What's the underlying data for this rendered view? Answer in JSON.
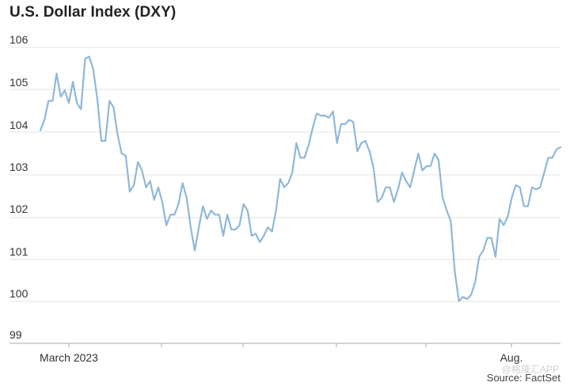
{
  "title": "U.S. Dollar Index (DXY)",
  "source": "Source: FactSet",
  "watermark": "@格隆汇APP",
  "colors": {
    "line": "#8fb8d8",
    "grid": "#e3e3e3",
    "axis": "#aaaaaa",
    "text": "#222222"
  },
  "chart_data": {
    "type": "line",
    "title": "U.S. Dollar Index (DXY)",
    "xlabel": "",
    "ylabel": "",
    "grid": true,
    "legend": "none",
    "y_tick_labels": [
      "106",
      "105",
      "104",
      "103",
      "102",
      "101",
      "100",
      "99"
    ],
    "x_tick_labels": [
      "March 2023",
      "Aug."
    ],
    "ylim": [
      99,
      106.1
    ],
    "series": [
      {
        "name": "",
        "values": [
          103.85,
          104.1,
          104.55,
          104.55,
          105.2,
          104.65,
          104.8,
          104.5,
          105.0,
          104.5,
          104.35,
          105.55,
          105.6,
          105.3,
          104.6,
          103.6,
          103.6,
          104.55,
          104.4,
          103.75,
          103.3,
          103.25,
          102.4,
          102.55,
          103.1,
          102.9,
          102.5,
          102.65,
          102.2,
          102.5,
          102.15,
          101.6,
          101.85,
          101.85,
          102.1,
          102.6,
          102.25,
          101.55,
          101.0,
          101.55,
          102.05,
          101.75,
          101.95,
          101.85,
          101.85,
          101.35,
          101.85,
          101.5,
          101.5,
          101.6,
          102.1,
          101.95,
          101.35,
          101.4,
          101.2,
          101.35,
          101.55,
          101.45,
          101.95,
          102.7,
          102.5,
          102.6,
          102.85,
          103.55,
          103.2,
          103.2,
          103.5,
          103.9,
          104.25,
          104.2,
          104.2,
          104.15,
          104.3,
          103.55,
          104.0,
          104.0,
          104.1,
          104.05,
          103.35,
          103.55,
          103.6,
          103.35,
          102.95,
          102.15,
          102.25,
          102.5,
          102.5,
          102.15,
          102.45,
          102.85,
          102.65,
          102.5,
          102.9,
          103.3,
          102.9,
          103.0,
          103.0,
          103.3,
          103.15,
          102.25,
          101.95,
          101.7,
          100.5,
          99.8,
          99.9,
          99.85,
          99.95,
          100.25,
          100.85,
          101.0,
          101.3,
          101.3,
          100.85,
          101.75,
          101.6,
          101.8,
          102.25,
          102.55,
          102.5,
          102.05,
          102.05,
          102.5,
          102.45,
          102.5,
          102.85,
          103.2,
          103.2,
          103.4,
          103.45
        ]
      }
    ]
  }
}
